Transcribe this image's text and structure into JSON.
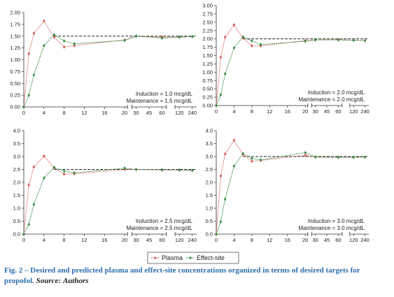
{
  "colors": {
    "plasma": "#d9534f",
    "effect_site": "#2e8b3f",
    "target": "#222222",
    "axis": "#333333",
    "caption_accent": "#2e6db0"
  },
  "legend": {
    "plasma": "Plasma",
    "effect_site": "Effect-site"
  },
  "caption": {
    "label": "Fig. 2",
    "text": " – Desired and predicted plasma and effect-site concentrations organized in terms of desired targets for propofol.",
    "source_label": "Source:",
    "source_value": "Authors"
  },
  "chart_data": [
    {
      "type": "line",
      "x_tick_labels": [
        "0",
        "4",
        "8",
        "12",
        "16",
        "20",
        "30",
        "45",
        "60",
        "120",
        "240"
      ],
      "y_ticks": [
        "0.00",
        "0.25",
        "0.50",
        "0.75",
        "1.00",
        "1.25",
        "1.50",
        "1.75",
        "2.00"
      ],
      "ylim": [
        0,
        2.0
      ],
      "target": 1.5,
      "annotation": [
        "Induction = 1.0 mcg/dL",
        "Maintenance = 1.5 mcg/dL"
      ],
      "series": [
        {
          "name": "Plasma",
          "x": [
            0,
            1,
            2,
            4,
            6,
            8,
            10,
            20,
            30,
            60,
            120,
            240
          ],
          "y": [
            0,
            1.13,
            1.56,
            1.82,
            1.48,
            1.27,
            1.3,
            1.42,
            1.5,
            1.48,
            1.48,
            1.49
          ]
        },
        {
          "name": "Effect-site",
          "x": [
            0,
            1,
            2,
            4,
            6,
            8,
            10,
            20,
            30,
            60,
            120,
            240
          ],
          "y": [
            0,
            0.25,
            0.68,
            1.3,
            1.53,
            1.4,
            1.34,
            1.41,
            1.5,
            1.46,
            1.48,
            1.49
          ]
        }
      ]
    },
    {
      "type": "line",
      "x_tick_labels": [
        "0",
        "4",
        "8",
        "12",
        "16",
        "20",
        "30",
        "45",
        "60",
        "120",
        "240"
      ],
      "y_ticks": [
        "0.00",
        "0.25",
        "0.50",
        "0.75",
        "1.00",
        "1.25",
        "1.50",
        "1.75",
        "2.00",
        "2.25",
        "2.50",
        "2.75",
        "3.00"
      ],
      "ylim": [
        0,
        3.0
      ],
      "target": 2.0,
      "annotation": [
        "Induction = 2.0 mcg/dL",
        "Maintenance = 2.0 mcg/dL"
      ],
      "series": [
        {
          "name": "Plasma",
          "x": [
            0,
            1,
            2,
            4,
            6,
            8,
            10,
            20,
            30,
            60,
            120,
            240
          ],
          "y": [
            0,
            1.45,
            2.05,
            2.42,
            2.03,
            1.79,
            1.79,
            1.95,
            1.97,
            1.98,
            1.96,
            1.95
          ]
        },
        {
          "name": "Effect-site",
          "x": [
            0,
            1,
            2,
            4,
            6,
            8,
            10,
            20,
            30,
            60,
            120,
            240
          ],
          "y": [
            0,
            0.32,
            0.95,
            1.73,
            2.06,
            1.94,
            1.83,
            1.93,
            1.97,
            1.97,
            1.96,
            1.95
          ]
        }
      ]
    },
    {
      "type": "line",
      "x_tick_labels": [
        "0",
        "4",
        "8",
        "12",
        "16",
        "20",
        "30",
        "45",
        "60",
        "120",
        "240"
      ],
      "y_ticks": [
        "0.0",
        "0.5",
        "1.0",
        "1.5",
        "2.0",
        "2.5",
        "3.0",
        "3.5",
        "4.0"
      ],
      "ylim": [
        0,
        4.0
      ],
      "target": 2.5,
      "annotation": [
        "Induction = 2.5 mcg/dL",
        "Maintenance = 2.5 mcg/dL"
      ],
      "series": [
        {
          "name": "Plasma",
          "x": [
            0,
            1,
            2,
            4,
            6,
            8,
            10,
            20,
            30,
            60,
            120,
            240
          ],
          "y": [
            0,
            1.9,
            2.6,
            3.02,
            2.56,
            2.32,
            2.33,
            2.5,
            2.5,
            2.48,
            2.48,
            2.46
          ]
        },
        {
          "name": "Effect-site",
          "x": [
            0,
            1,
            2,
            4,
            6,
            8,
            10,
            20,
            30,
            60,
            120,
            240
          ],
          "y": [
            0,
            0.38,
            1.15,
            2.17,
            2.58,
            2.44,
            2.37,
            2.55,
            2.5,
            2.49,
            2.48,
            2.46
          ]
        }
      ]
    },
    {
      "type": "line",
      "x_tick_labels": [
        "0",
        "4",
        "8",
        "12",
        "16",
        "20",
        "30",
        "45",
        "60",
        "120",
        "240"
      ],
      "y_ticks": [
        "0.0",
        "0.5",
        "1.0",
        "1.5",
        "2.0",
        "2.5",
        "3.0",
        "3.5",
        "4.0"
      ],
      "ylim": [
        0,
        4.0
      ],
      "target": 3.0,
      "annotation": [
        "Induction = 3.0 mcg/dL",
        "Maintenance = 3.0 mcg/dL"
      ],
      "series": [
        {
          "name": "Plasma",
          "x": [
            0,
            1,
            2,
            4,
            6,
            8,
            10,
            20,
            30,
            60,
            120,
            240
          ],
          "y": [
            0,
            2.25,
            3.1,
            3.63,
            3.08,
            2.82,
            2.85,
            3.05,
            2.98,
            2.97,
            2.97,
            2.98
          ]
        },
        {
          "name": "Effect-site",
          "x": [
            0,
            1,
            2,
            4,
            6,
            8,
            10,
            20,
            30,
            60,
            120,
            240
          ],
          "y": [
            0,
            0.48,
            1.35,
            2.63,
            3.12,
            2.93,
            2.87,
            3.15,
            2.98,
            2.97,
            2.97,
            2.98
          ]
        }
      ]
    }
  ]
}
